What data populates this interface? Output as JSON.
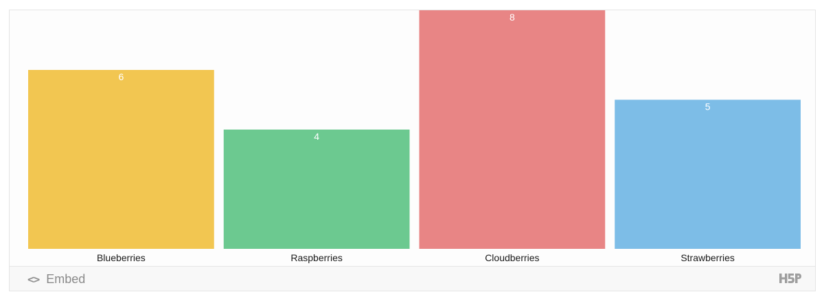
{
  "chart_data": {
    "type": "bar",
    "categories": [
      "Blueberries",
      "Raspberries",
      "Cloudberries",
      "Strawberries"
    ],
    "values": [
      6,
      4,
      8,
      5
    ],
    "colors": [
      "#f2c651",
      "#6cc990",
      "#e88585",
      "#7dbde7"
    ],
    "ylim": [
      0,
      8
    ],
    "grid": false,
    "title": "",
    "xlabel": "",
    "ylabel": ""
  },
  "actions": {
    "embed_label": "Embed",
    "embed_icon": "code-icon",
    "logo_icon": "h5p-logo"
  }
}
